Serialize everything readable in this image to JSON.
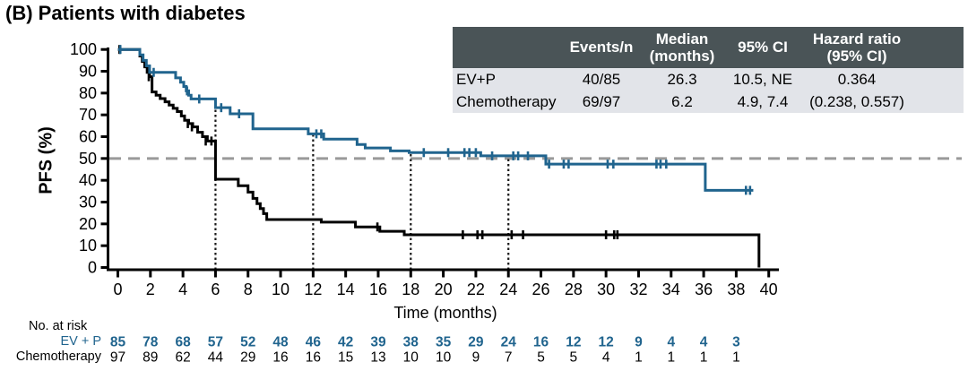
{
  "title": "(B) Patients with diabetes",
  "results_table": {
    "headers": [
      "",
      "Events/n",
      "Median\n(months)",
      "95% CI",
      "Hazard ratio\n(95% CI)"
    ],
    "rows": [
      {
        "label": "EV+P",
        "events_n": "40/85",
        "median": "26.3",
        "ci": "10.5, NE",
        "hr": "0.364"
      },
      {
        "label": "Chemotherapy",
        "events_n": "69/97",
        "median": "6.2",
        "ci": "4.9, 7.4",
        "hr": "(0.238, 0.557)"
      }
    ],
    "header_bg": "#4a5457",
    "row_bg": "#e2e4e9"
  },
  "chart_data": {
    "type": "line",
    "subtype": "kaplan-meier-step",
    "title": "(B) Patients with diabetes",
    "xlabel": "Time (months)",
    "ylabel": "PFS (%)",
    "xlim": [
      0,
      40
    ],
    "ylim": [
      0,
      100
    ],
    "xtick_step": 2,
    "ytick_step": 10,
    "grid": false,
    "reference_lines": {
      "h_dashed_pct": 50,
      "h_dashed_color": "#9a9a9a",
      "v_dotted_months": [
        6,
        12,
        18,
        24
      ],
      "v_dotted_color": "#1a1a1a"
    },
    "series": [
      {
        "name": "Chemotherapy",
        "color": "#000000",
        "steps": [
          [
            0,
            100
          ],
          [
            1.35,
            97
          ],
          [
            1.5,
            94.5
          ],
          [
            1.65,
            92
          ],
          [
            1.8,
            89.5
          ],
          [
            1.95,
            87.5
          ],
          [
            2.1,
            80.5
          ],
          [
            2.35,
            79
          ],
          [
            2.6,
            77.5
          ],
          [
            2.9,
            76
          ],
          [
            3.15,
            74.5
          ],
          [
            3.4,
            73
          ],
          [
            3.65,
            71.5
          ],
          [
            3.9,
            69.5
          ],
          [
            4.1,
            67.5
          ],
          [
            4.35,
            66
          ],
          [
            4.6,
            64.5
          ],
          [
            4.9,
            62
          ],
          [
            5.2,
            60
          ],
          [
            5.5,
            58
          ],
          [
            6.0,
            40.5
          ],
          [
            7.4,
            37.5
          ],
          [
            8.0,
            34.6
          ],
          [
            8.3,
            31.7
          ],
          [
            8.55,
            29.3
          ],
          [
            8.75,
            27
          ],
          [
            8.95,
            24.7
          ],
          [
            9.15,
            22
          ],
          [
            12.5,
            20.8
          ],
          [
            14.6,
            18.6
          ],
          [
            16.1,
            16.6
          ],
          [
            17.6,
            15
          ],
          [
            39.4,
            0
          ]
        ],
        "censors": [
          [
            0.1,
            100
          ],
          [
            1.9,
            87.5
          ],
          [
            4.3,
            66
          ],
          [
            4.55,
            64.5
          ],
          [
            5.4,
            58
          ],
          [
            5.75,
            58
          ],
          [
            15.95,
            18.6
          ],
          [
            21.2,
            15
          ],
          [
            22.1,
            15
          ],
          [
            22.4,
            15
          ],
          [
            24.2,
            15
          ],
          [
            24.9,
            15
          ],
          [
            30.0,
            15
          ],
          [
            30.5,
            15
          ],
          [
            30.7,
            15
          ]
        ]
      },
      {
        "name": "EV+P",
        "color": "#20648e",
        "steps": [
          [
            0,
            100
          ],
          [
            1.35,
            97.5
          ],
          [
            1.55,
            95
          ],
          [
            1.75,
            92.5
          ],
          [
            1.95,
            89.5
          ],
          [
            3.55,
            87
          ],
          [
            3.85,
            85
          ],
          [
            4.05,
            83
          ],
          [
            4.2,
            81
          ],
          [
            4.35,
            79
          ],
          [
            4.5,
            77.3
          ],
          [
            6.0,
            73.3
          ],
          [
            6.9,
            70.5
          ],
          [
            8.3,
            63.6
          ],
          [
            11.7,
            61.3
          ],
          [
            12.65,
            58.9
          ],
          [
            14.7,
            56.4
          ],
          [
            15.2,
            54.8
          ],
          [
            16.75,
            53.5
          ],
          [
            17.9,
            52.7
          ],
          [
            22.3,
            51.2
          ],
          [
            26.3,
            47.4
          ],
          [
            36.1,
            35.4
          ],
          [
            39.05,
            35.4
          ]
        ],
        "censors": [
          [
            0.15,
            100
          ],
          [
            2.2,
            89.5
          ],
          [
            4.25,
            81
          ],
          [
            5.0,
            77.3
          ],
          [
            6.35,
            73.3
          ],
          [
            7.45,
            70.5
          ],
          [
            12.2,
            61.3
          ],
          [
            12.5,
            61.3
          ],
          [
            18.8,
            52.7
          ],
          [
            20.3,
            52.7
          ],
          [
            21.3,
            52.7
          ],
          [
            21.6,
            52.7
          ],
          [
            22.0,
            52.7
          ],
          [
            23.0,
            51.2
          ],
          [
            24.3,
            51.2
          ],
          [
            24.6,
            51.2
          ],
          [
            25.2,
            51.2
          ],
          [
            26.5,
            47.4
          ],
          [
            27.4,
            47.4
          ],
          [
            27.7,
            47.4
          ],
          [
            30.1,
            47.4
          ],
          [
            30.45,
            47.4
          ],
          [
            33.1,
            47.4
          ],
          [
            33.35,
            47.4
          ],
          [
            33.7,
            47.4
          ],
          [
            38.6,
            35.4
          ],
          [
            38.85,
            35.4
          ]
        ]
      }
    ]
  },
  "no_at_risk": {
    "label": "No. at risk",
    "months": [
      0,
      2,
      4,
      6,
      8,
      10,
      12,
      14,
      16,
      18,
      20,
      22,
      24,
      26,
      28,
      30,
      32,
      34,
      36,
      38
    ],
    "rows": [
      {
        "label": "EV + P",
        "color": "#20648e",
        "bold": true,
        "values": [
          85,
          78,
          68,
          57,
          52,
          48,
          46,
          42,
          39,
          38,
          35,
          29,
          24,
          16,
          12,
          12,
          9,
          4,
          4,
          3
        ]
      },
      {
        "label": "Chemotherapy",
        "color": "#000000",
        "bold": false,
        "values": [
          97,
          89,
          62,
          44,
          29,
          16,
          16,
          15,
          13,
          10,
          10,
          9,
          7,
          5,
          5,
          4,
          1,
          1,
          1,
          1
        ]
      }
    ]
  }
}
